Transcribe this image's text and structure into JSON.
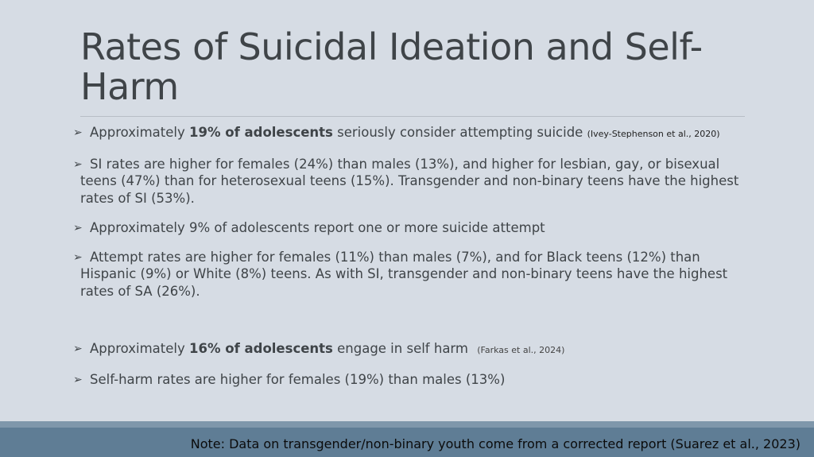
{
  "slide": {
    "title": "Rates of Suicidal Ideation and Self-Harm",
    "bullets": [
      {
        "pre": "Approximately ",
        "bold": "19% of adolescents",
        "post": " seriously consider attempting suicide ",
        "citation": "(Ivey-Stephenson et al., 2020)"
      },
      {
        "text": "SI rates are higher for females (24%) than males (13%), and higher for lesbian, gay, or bisexual teens (47%) than for heterosexual teens (15%). Transgender and non-binary teens have the highest rates of SI (53%)."
      },
      {
        "text": "Approximately 9% of adolescents report one or more suicide attempt"
      },
      {
        "text": "Attempt rates are higher for females (11%) than males (7%), and for Black teens (12%) than Hispanic (9%) or White (8%) teens. As with SI, transgender and non-binary teens have the highest rates of SA (26%)."
      },
      {
        "pre": "Approximately ",
        "bold": "16% of adolescents",
        "post": " engage in self harm ",
        "citation": "(Farkas et al., 2024)"
      },
      {
        "text": "Self-harm rates are higher for females (19%) than males (13%)"
      }
    ],
    "bullet_icon": "arrow-bullet-icon",
    "note": "Note: Data on transgender/non-binary youth come from a corrected report (Suarez et al., 2023)"
  },
  "colors": {
    "background": "#d6dce4",
    "text": "#3f4448",
    "footer": "#5f7d95",
    "footer_band": "#7f97ab"
  }
}
